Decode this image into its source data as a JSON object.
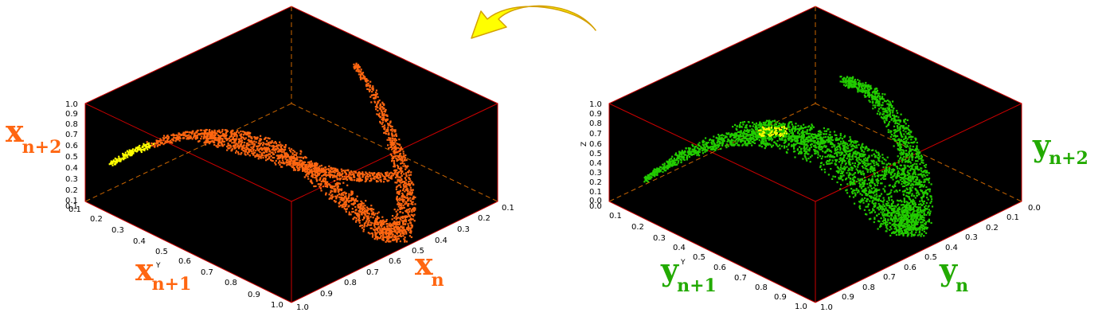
{
  "chart_data": [
    {
      "type": "scatter3d",
      "color": "#ff6611",
      "highlight_color": "#ffff00",
      "background": "#000000",
      "axis_letter": "Y",
      "axis_labels": {
        "x": "x",
        "x_sub": "n",
        "y": "x",
        "y_sub": "n+1",
        "z": "x",
        "z_sub": "n+2"
      },
      "x_ticks": [
        "0.1",
        "0.2",
        "0.3",
        "0.4",
        "0.5",
        "0.6",
        "0.7",
        "0.8",
        "0.9",
        "1.0"
      ],
      "y_ticks": [
        "0.1",
        "0.2",
        "0.3",
        "0.4",
        "0.5",
        "0.6",
        "0.7",
        "0.8",
        "0.9",
        "1.0"
      ],
      "z_ticks": [
        "0.1",
        "0.1",
        "0.2",
        "0.3",
        "0.4",
        "0.5",
        "0.6",
        "0.7",
        "0.8",
        "0.9",
        "1.0"
      ],
      "xlim": [
        0.1,
        1.0
      ],
      "ylim": [
        0.1,
        1.0
      ],
      "zlim": [
        0.1,
        1.0
      ]
    },
    {
      "type": "scatter3d",
      "color": "#22cc00",
      "highlight_color": "#ffff00",
      "background": "#000000",
      "axis_letter": "Y",
      "z_axis_letter": "Z",
      "axis_labels": {
        "x": "y",
        "x_sub": "n",
        "y": "y",
        "y_sub": "n+1",
        "z": "y",
        "z_sub": "n+2"
      },
      "x_ticks": [
        "0.0",
        "0.1",
        "0.2",
        "0.3",
        "0.4",
        "0.5",
        "0.6",
        "0.7",
        "0.8",
        "0.9",
        "1.0"
      ],
      "y_ticks": [
        "0.1",
        "0.2",
        "0.3",
        "0.4",
        "0.5",
        "0.6",
        "0.7",
        "0.8",
        "0.9",
        "1.0"
      ],
      "z_ticks": [
        "0.0",
        "0.0",
        "0.1",
        "0.2",
        "0.3",
        "0.4",
        "0.5",
        "0.6",
        "0.7",
        "0.8",
        "0.9",
        "1.0"
      ],
      "xlim": [
        0.0,
        1.0
      ],
      "ylim": [
        0.1,
        1.0
      ],
      "zlim": [
        0.0,
        1.0
      ]
    }
  ],
  "arrow": {
    "color": "#ffff00",
    "direction": "right-to-left"
  }
}
